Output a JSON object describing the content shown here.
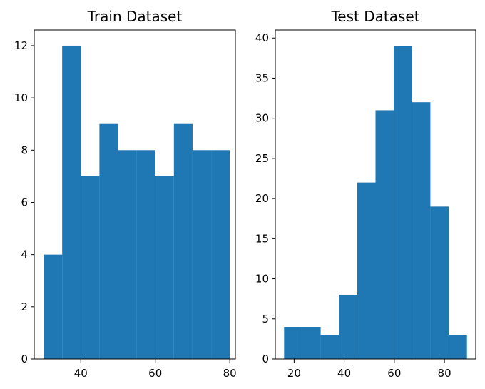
{
  "chart_data": [
    {
      "type": "histogram",
      "title": "Train Dataset",
      "xlabel": "",
      "ylabel": "",
      "xlim": [
        27.5,
        81.5
      ],
      "ylim": [
        0,
        12.6
      ],
      "xticks": [
        40,
        60,
        80
      ],
      "yticks": [
        0,
        2,
        4,
        6,
        8,
        10,
        12
      ],
      "bins": [
        {
          "x0": 30.0,
          "x1": 35.0,
          "count": 4
        },
        {
          "x0": 35.0,
          "x1": 40.0,
          "count": 12
        },
        {
          "x0": 40.0,
          "x1": 45.0,
          "count": 7
        },
        {
          "x0": 45.0,
          "x1": 50.0,
          "count": 9
        },
        {
          "x0": 50.0,
          "x1": 55.0,
          "count": 8
        },
        {
          "x0": 55.0,
          "x1": 60.0,
          "count": 8
        },
        {
          "x0": 60.0,
          "x1": 65.0,
          "count": 7
        },
        {
          "x0": 65.0,
          "x1": 70.0,
          "count": 9
        },
        {
          "x0": 70.0,
          "x1": 75.0,
          "count": 8
        },
        {
          "x0": 75.0,
          "x1": 80.0,
          "count": 8
        }
      ],
      "bar_color": "#1f77b4",
      "grid": false,
      "legend": "none"
    },
    {
      "type": "histogram",
      "title": "Test Dataset",
      "xlabel": "",
      "ylabel": "",
      "xlim": [
        12.5,
        92.5
      ],
      "ylim": [
        0,
        41
      ],
      "xticks": [
        20,
        40,
        60,
        80
      ],
      "yticks": [
        0,
        5,
        10,
        15,
        20,
        25,
        30,
        35,
        40
      ],
      "bins": [
        {
          "x0": 16.0,
          "x1": 23.3,
          "count": 4
        },
        {
          "x0": 23.3,
          "x1": 30.6,
          "count": 4
        },
        {
          "x0": 30.6,
          "x1": 37.9,
          "count": 3
        },
        {
          "x0": 37.9,
          "x1": 45.2,
          "count": 8
        },
        {
          "x0": 45.2,
          "x1": 52.5,
          "count": 22
        },
        {
          "x0": 52.5,
          "x1": 59.8,
          "count": 31
        },
        {
          "x0": 59.8,
          "x1": 67.1,
          "count": 39
        },
        {
          "x0": 67.1,
          "x1": 74.4,
          "count": 32
        },
        {
          "x0": 74.4,
          "x1": 81.7,
          "count": 19
        },
        {
          "x0": 81.7,
          "x1": 89.0,
          "count": 3
        }
      ],
      "bar_color": "#1f77b4",
      "grid": false,
      "legend": "none"
    }
  ]
}
